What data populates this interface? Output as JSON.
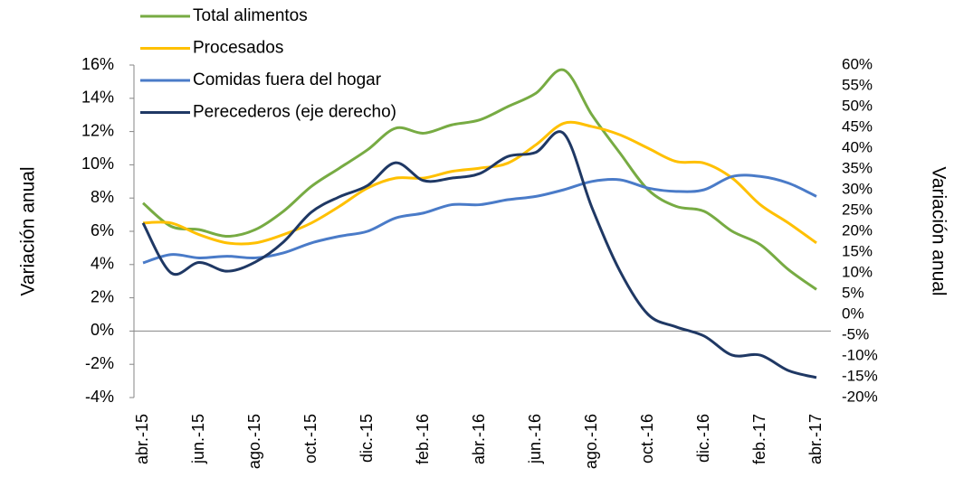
{
  "chart_data": {
    "type": "line",
    "y_label": "Variación anual",
    "y2_label": "Variación anual",
    "categories": [
      "abr.-15",
      null,
      "jun.-15",
      null,
      "ago.-15",
      null,
      "oct.-15",
      null,
      "dic.-15",
      null,
      "feb.-16",
      null,
      "abr.-16",
      null,
      "jun.-16",
      null,
      "ago.-16",
      null,
      "oct.-16",
      null,
      "dic.-16",
      null,
      "feb.-17",
      null,
      "abr.-17"
    ],
    "series": [
      {
        "name": "Total alimentos",
        "color": "#77ab43",
        "values": [
          7.7,
          6.3,
          6.1,
          5.7,
          6.1,
          7.2,
          8.7,
          9.8,
          10.9,
          12.2,
          11.9,
          12.4,
          12.7,
          13.5,
          14.3,
          15.7,
          13.0,
          10.7,
          8.5,
          7.5,
          7.2,
          6.0,
          5.2,
          3.7,
          2.5
        ]
      },
      {
        "name": "Procesados",
        "color": "#ffc000",
        "values": [
          6.5,
          6.5,
          5.8,
          5.3,
          5.3,
          5.8,
          6.5,
          7.5,
          8.6,
          9.2,
          9.2,
          9.6,
          9.8,
          10.1,
          11.2,
          12.5,
          12.3,
          11.8,
          11.0,
          10.2,
          10.1,
          9.2,
          7.6,
          6.5,
          5.3
        ]
      },
      {
        "name": "Comidas fuera del hogar",
        "color": "#4a7bc8",
        "values": [
          4.1,
          4.6,
          4.4,
          4.5,
          4.4,
          4.7,
          5.3,
          5.7,
          6.0,
          6.8,
          7.1,
          7.6,
          7.6,
          7.9,
          8.1,
          8.5,
          9.0,
          9.1,
          8.6,
          8.4,
          8.5,
          9.3,
          9.3,
          8.9,
          8.1
        ]
      },
      {
        "name": "Perecederos (eje derecho)",
        "color": "#1f3864",
        "axis": "y2",
        "values": [
          22,
          10,
          12.5,
          10.4,
          12.6,
          17.4,
          24.6,
          28.3,
          31,
          36.5,
          32.2,
          32.8,
          33.9,
          38,
          39,
          43.5,
          25.7,
          10.4,
          0,
          -3,
          -5.2,
          -9.8,
          -9.8,
          -13.5,
          -15.2
        ]
      }
    ],
    "ylim": [
      -4,
      16
    ],
    "yticks": [
      {
        "value": -4,
        "label": "-4%"
      },
      {
        "value": -2,
        "label": "-2%"
      },
      {
        "value": 0,
        "label": "0%"
      },
      {
        "value": 2,
        "label": "2%"
      },
      {
        "value": 4,
        "label": "4%"
      },
      {
        "value": 6,
        "label": "6%"
      },
      {
        "value": 8,
        "label": "8%"
      },
      {
        "value": 10,
        "label": "10%"
      },
      {
        "value": 12,
        "label": "12%"
      },
      {
        "value": 14,
        "label": "14%"
      },
      {
        "value": 16,
        "label": "16%"
      }
    ],
    "y2lim": [
      -20,
      60
    ],
    "y2ticks": [
      {
        "value": -20,
        "label": "-20%"
      },
      {
        "value": -15,
        "label": "-15%"
      },
      {
        "value": -10,
        "label": "-10%"
      },
      {
        "value": -5,
        "label": "-5%"
      },
      {
        "value": 0,
        "label": "0%"
      },
      {
        "value": 5,
        "label": "5%"
      },
      {
        "value": 10,
        "label": "10%"
      },
      {
        "value": 15,
        "label": "15%"
      },
      {
        "value": 20,
        "label": "20%"
      },
      {
        "value": 25,
        "label": "25%"
      },
      {
        "value": 30,
        "label": "30%"
      },
      {
        "value": 35,
        "label": "35%"
      },
      {
        "value": 40,
        "label": "40%"
      },
      {
        "value": 45,
        "label": "45%"
      },
      {
        "value": 50,
        "label": "50%"
      },
      {
        "value": 55,
        "label": "55%"
      },
      {
        "value": 60,
        "label": "60%"
      }
    ],
    "legend": "top-left",
    "grid": false
  }
}
